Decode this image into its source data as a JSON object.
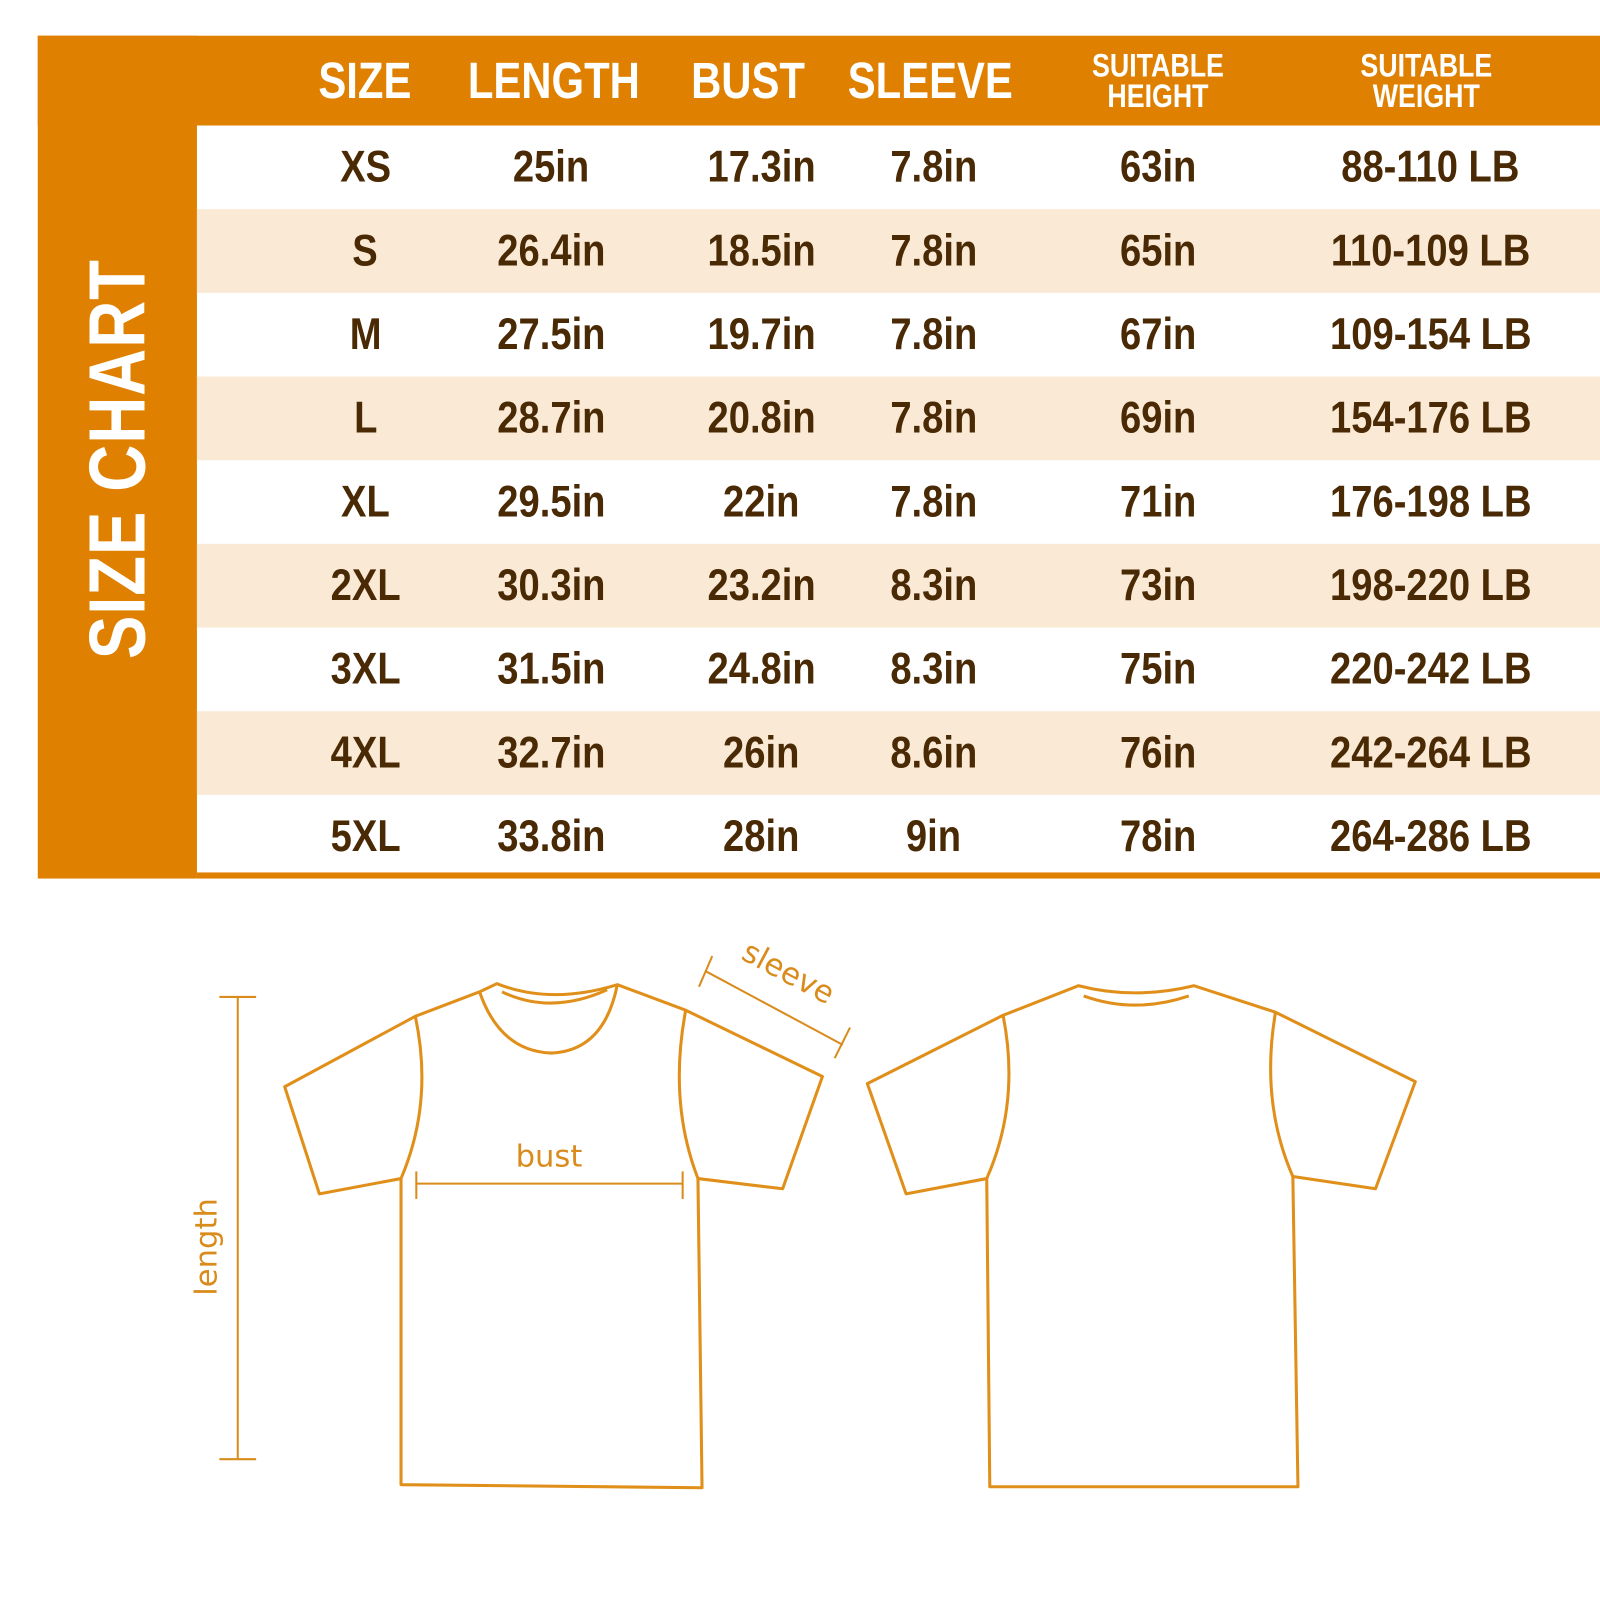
{
  "title": "SIZE CHART",
  "colors": {
    "accent": "#E08000",
    "stripe": "#FAE9D5",
    "text": "#4A2A05",
    "outline": "#E0901A"
  },
  "headers": [
    {
      "lines": [
        "SIZE"
      ]
    },
    {
      "lines": [
        "LENGTH"
      ]
    },
    {
      "lines": [
        "BUST"
      ]
    },
    {
      "lines": [
        "SLEEVE"
      ]
    },
    {
      "lines": [
        "SUITABLE",
        "HEIGHT"
      ]
    },
    {
      "lines": [
        "SUITABLE",
        "WEIGHT"
      ]
    }
  ],
  "rows": [
    [
      "XS",
      "25in",
      "17.3in",
      "7.8in",
      "63in",
      "88-110 LB"
    ],
    [
      "S",
      "26.4in",
      "18.5in",
      "7.8in",
      "65in",
      "110-109 LB"
    ],
    [
      "M",
      "27.5in",
      "19.7in",
      "7.8in",
      "67in",
      "109-154 LB"
    ],
    [
      "L",
      "28.7in",
      "20.8in",
      "7.8in",
      "69in",
      "154-176 LB"
    ],
    [
      "XL",
      "29.5in",
      "22in",
      "7.8in",
      "71in",
      "176-198 LB"
    ],
    [
      "2XL",
      "30.3in",
      "23.2in",
      "8.3in",
      "73in",
      "198-220 LB"
    ],
    [
      "3XL",
      "31.5in",
      "24.8in",
      "8.3in",
      "75in",
      "220-242 LB"
    ],
    [
      "4XL",
      "32.7in",
      "26in",
      "8.6in",
      "76in",
      "242-264 LB"
    ],
    [
      "5XL",
      "33.8in",
      "28in",
      "9in",
      "78in",
      "264-286 LB"
    ]
  ],
  "diagram": {
    "sleeve_label": "sleeve",
    "bust_label": "bust",
    "length_label": "length"
  }
}
